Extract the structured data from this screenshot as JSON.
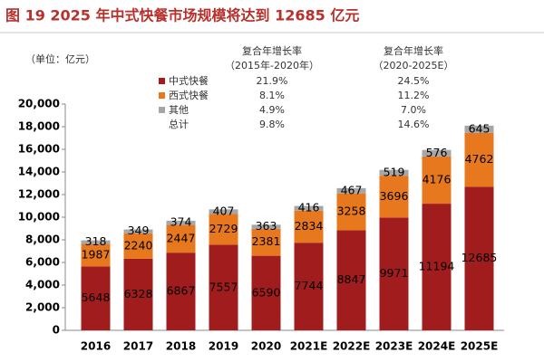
{
  "chart_data": {
    "type": "stacked_bar",
    "title": "图 19 2025 年中式快餐市场规模将达到 12685 亿元",
    "unit_label": "（单位：亿元）",
    "categories": [
      "2016",
      "2017",
      "2018",
      "2019",
      "2020",
      "2021E",
      "2022E",
      "2023E",
      "2024E",
      "2025E"
    ],
    "series": [
      {
        "name": "中式快餐",
        "color": "#a11d1d",
        "values": [
          5648,
          6328,
          6867,
          7557,
          6590,
          7744,
          8847,
          9971,
          11194,
          12685
        ]
      },
      {
        "name": "西式快餐",
        "color": "#e8781e",
        "values": [
          1987,
          2240,
          2447,
          2729,
          2381,
          2834,
          3258,
          3696,
          4176,
          4762
        ]
      },
      {
        "name": "其他",
        "color": "#a6a6a6",
        "values": [
          318,
          349,
          374,
          407,
          363,
          416,
          467,
          519,
          576,
          645
        ]
      }
    ],
    "cagr_table": {
      "total_label": "总计",
      "columns": [
        {
          "header": [
            "复合年增长率",
            "（2015年-2020年）"
          ],
          "values": [
            "21.9%",
            "8.1%",
            "4.9%",
            "9.8%"
          ]
        },
        {
          "header": [
            "复合年增长率",
            "（2020-2025E）"
          ],
          "values": [
            "24.5%",
            "11.2%",
            "7.0%",
            "14.6%"
          ]
        }
      ]
    },
    "ylim": [
      0,
      20000
    ],
    "yticks": [
      0,
      {
        "value": 2000,
        "label": "2,000"
      },
      {
        "value": 4000,
        "label": "4,000"
      },
      {
        "value": 6000,
        "label": "6,000"
      },
      {
        "value": 8000,
        "label": "8,000"
      },
      {
        "value": 10000,
        "label": "10,000"
      },
      {
        "value": 12000,
        "label": "12,000"
      },
      {
        "value": 14000,
        "label": "14,000"
      },
      {
        "value": 16000,
        "label": "16,000"
      },
      {
        "value": 18000,
        "label": "18,000"
      },
      {
        "value": 20000,
        "label": "20,000"
      }
    ],
    "grid": false
  }
}
